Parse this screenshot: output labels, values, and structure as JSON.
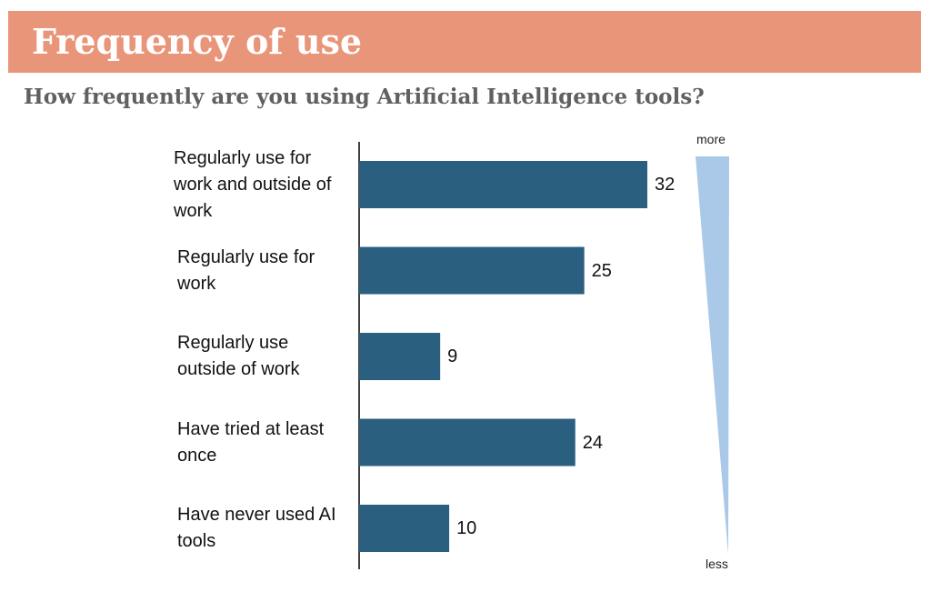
{
  "header": {
    "title": "Frequency of use",
    "subtitle": "How frequently are you using Artificial Intelligence tools?"
  },
  "scale": {
    "top_label": "more",
    "bottom_label": "less",
    "color": "#aac8e8"
  },
  "colors": {
    "banner": "#e9957a",
    "bar": "#2b5f80"
  },
  "chart_data": {
    "type": "bar",
    "orientation": "horizontal",
    "categories": [
      "Regularly use for work and outside of work",
      "Regularly use for work",
      "Regularly use outside of work",
      "Have tried at least once",
      "Have never used AI tools"
    ],
    "values": [
      32,
      25,
      9,
      24,
      10
    ],
    "xlim": [
      0,
      40
    ],
    "grid": false,
    "legend": "none"
  }
}
